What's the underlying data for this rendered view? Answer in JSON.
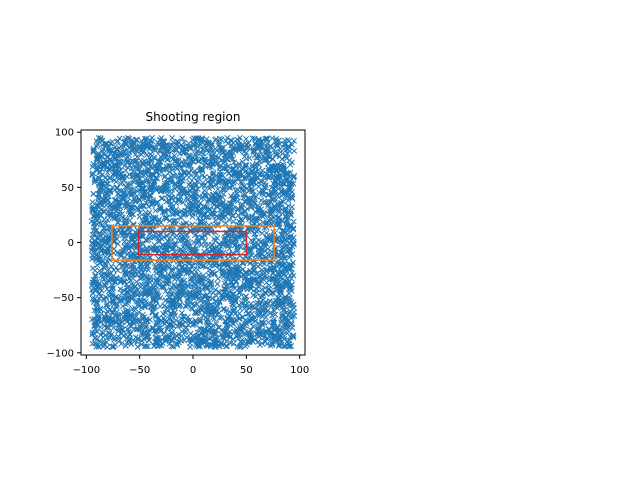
{
  "chart_data": {
    "type": "scatter",
    "title": "Shooting region",
    "xlabel": "",
    "ylabel": "",
    "xlim": [
      -105,
      105
    ],
    "ylim": [
      -102,
      102
    ],
    "x_ticks": [
      -100,
      -50,
      0,
      50,
      100
    ],
    "y_ticks": [
      -100,
      -50,
      0,
      50,
      100
    ],
    "grid": false,
    "legend": "none",
    "series": [
      {
        "marker": "x",
        "color": "#1f77b4",
        "distribution": "uniform",
        "x_range": [
          -95,
          95
        ],
        "y_range": [
          -95,
          95
        ],
        "count": 4000
      }
    ],
    "rectangles": [
      {
        "x": [
          -76,
          76
        ],
        "y": [
          -16,
          15
        ],
        "color": "#ff7f0e"
      },
      {
        "x": [
          -51,
          50
        ],
        "y": [
          -11,
          10
        ],
        "color": "#d62728"
      }
    ]
  }
}
